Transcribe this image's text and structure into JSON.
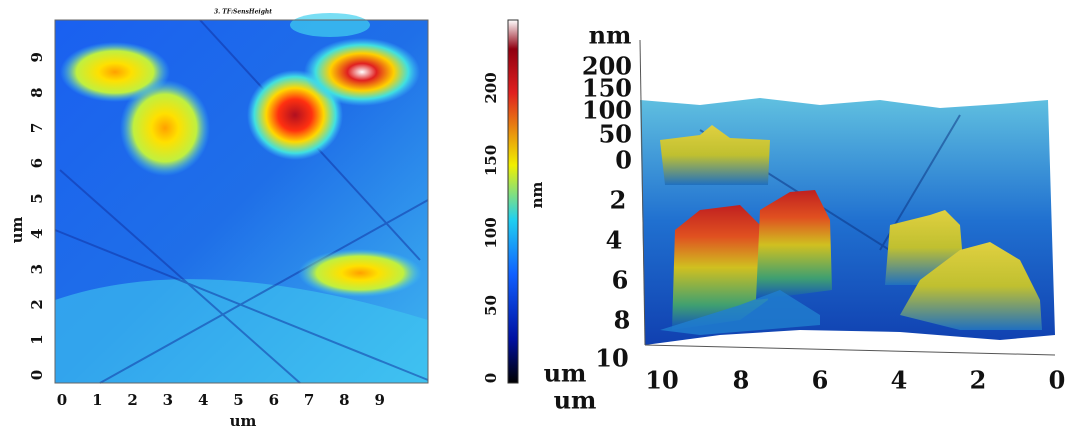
{
  "left_map": {
    "title": "3. TF:SensHeight",
    "x_label": "um",
    "y_label": "um",
    "x_ticks": [
      "0",
      "1",
      "2",
      "3",
      "4",
      "5",
      "6",
      "7",
      "8",
      "9"
    ],
    "y_ticks": [
      "0",
      "1",
      "2",
      "3",
      "4",
      "5",
      "6",
      "7",
      "8",
      "9"
    ]
  },
  "colorbar": {
    "label": "nm",
    "ticks": [
      "0",
      "50",
      "100",
      "150",
      "200"
    ]
  },
  "surface_3d": {
    "z_label": "nm",
    "z_ticks": [
      "200",
      "150",
      "100",
      "50",
      "0"
    ],
    "y_label": "um",
    "y_ticks": [
      "2",
      "4",
      "6",
      "8",
      "10"
    ],
    "x_label": "um",
    "x_ticks": [
      "10",
      "8",
      "6",
      "4",
      "2",
      "0"
    ]
  }
}
